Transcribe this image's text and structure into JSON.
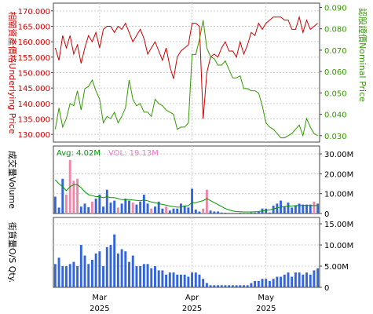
{
  "colors": {
    "underlying": "#cc0000",
    "warrant": "#339900",
    "vol_up": "#3366dd",
    "vol_down": "#ee88aa",
    "avg_line": "#009900",
    "grid": "#cccccc",
    "frame": "#444444",
    "avg_text": "#009900",
    "vol_text": "#ee77cc",
    "axis_text": "#000000"
  },
  "chart_data": [
    {
      "type": "line",
      "panel": "price",
      "left_axis_label": "相關資產價格Underlying Price",
      "right_axis_label": "認股證價Nominal Price",
      "left_ticks": [
        "130.000",
        "135.000",
        "140.000",
        "145.000",
        "150.000",
        "155.000",
        "160.000",
        "165.000",
        "170.000"
      ],
      "left_tick_values": [
        130,
        135,
        140,
        145,
        150,
        155,
        160,
        165,
        170
      ],
      "right_ticks": [
        "0.030",
        "0.040",
        "0.050",
        "0.060",
        "0.070",
        "0.080",
        "0.090"
      ],
      "right_tick_values": [
        0.03,
        0.04,
        0.05,
        0.06,
        0.07,
        0.08,
        0.09
      ],
      "ylim_left": [
        127.5,
        172.5
      ],
      "ylim_right": [
        0.027,
        0.092
      ],
      "x_count": 72,
      "series": [
        {
          "name": "Underlying",
          "axis": "left",
          "values": [
            158,
            154,
            162,
            158,
            162,
            156,
            159,
            153,
            158,
            162,
            160,
            163,
            158,
            164,
            165,
            165,
            163,
            165,
            164,
            166,
            163,
            160,
            162,
            164,
            161,
            156,
            158,
            160,
            157,
            154,
            158,
            152,
            148,
            155,
            157,
            158,
            159,
            166,
            166,
            165,
            135,
            150,
            155,
            156,
            155,
            158,
            160,
            157,
            157,
            155,
            160,
            156,
            159,
            163,
            162,
            166,
            164,
            166,
            167,
            168,
            168,
            168,
            167,
            167,
            164,
            164,
            168,
            163,
            167,
            164,
            165,
            166
          ]
        },
        {
          "name": "Warrant",
          "axis": "right",
          "values": [
            0.033,
            0.043,
            0.034,
            0.038,
            0.045,
            0.044,
            0.051,
            0.042,
            0.052,
            0.053,
            0.056,
            0.051,
            0.047,
            0.036,
            0.039,
            0.038,
            0.041,
            0.036,
            0.039,
            0.043,
            0.056,
            0.047,
            0.044,
            0.045,
            0.041,
            0.041,
            0.039,
            0.047,
            0.045,
            0.044,
            0.042,
            0.041,
            0.04,
            0.033,
            0.034,
            0.034,
            0.036,
            0.068,
            0.068,
            0.075,
            0.084,
            0.071,
            0.067,
            0.066,
            0.063,
            0.063,
            0.065,
            0.061,
            0.057,
            0.057,
            0.058,
            0.052,
            0.052,
            0.051,
            0.051,
            0.05,
            0.044,
            0.036,
            0.034,
            0.033,
            0.031,
            0.029,
            0.029,
            0.03,
            0.031,
            0.033,
            0.035,
            0.03,
            0.038,
            0.034,
            0.031,
            0.03
          ]
        }
      ]
    },
    {
      "type": "bar",
      "panel": "volume",
      "axis_label": "成交量Volume",
      "avg_label": "Avg: 4.02M",
      "vol_label": "VOL: 19.13M",
      "right_ticks": [
        "0",
        "10.00M",
        "20.00M",
        "30.00M"
      ],
      "right_tick_values": [
        0,
        10,
        20,
        30
      ],
      "ylim": [
        0,
        34
      ],
      "unit": "M",
      "x_count": 72,
      "values": [
        8.5,
        3.0,
        17.5,
        9.5,
        27.0,
        16.5,
        17.5,
        3.5,
        5.0,
        3.2,
        6.0,
        7.5,
        9.5,
        3.5,
        12.0,
        5.5,
        6.5,
        3.0,
        5.0,
        7.5,
        6.5,
        5.5,
        4.5,
        6.0,
        9.5,
        5.0,
        2.5,
        3.5,
        6.0,
        2.5,
        3.5,
        1.5,
        2.5,
        2.5,
        5.0,
        4.0,
        3.0,
        12.5,
        2.0,
        1.0,
        2.5,
        12.0,
        1.5,
        1.0,
        1.0,
        0.5,
        0.4,
        0.3,
        0.3,
        0.3,
        0.4,
        0.3,
        0.3,
        0.5,
        0.5,
        0.8,
        2.5,
        2.5,
        0.5,
        4.0,
        5.0,
        6.5,
        3.5,
        5.5,
        3.0,
        4.0,
        5.0,
        4.5,
        4.5,
        4.5,
        6.0,
        5.0
      ],
      "down": [
        false,
        false,
        false,
        true,
        true,
        true,
        true,
        false,
        false,
        false,
        true,
        false,
        false,
        false,
        false,
        false,
        false,
        true,
        false,
        false,
        false,
        true,
        false,
        false,
        false,
        false,
        true,
        false,
        false,
        false,
        true,
        false,
        false,
        false,
        false,
        false,
        false,
        false,
        false,
        false,
        true,
        true,
        false,
        false,
        false,
        false,
        false,
        false,
        false,
        false,
        false,
        false,
        false,
        false,
        false,
        false,
        false,
        false,
        false,
        false,
        false,
        false,
        false,
        false,
        false,
        false,
        false,
        false,
        false,
        false,
        true,
        false
      ],
      "avg_values": [
        17.0,
        15.0,
        13.5,
        11.5,
        13.5,
        14.5,
        14.5,
        13.0,
        11.0,
        9.5,
        9.0,
        8.5,
        8.5,
        8.0,
        8.5,
        8.0,
        8.0,
        7.5,
        7.0,
        7.0,
        7.0,
        6.8,
        6.6,
        6.4,
        6.8,
        6.4,
        5.8,
        5.4,
        5.0,
        4.6,
        4.2,
        3.8,
        3.5,
        3.2,
        3.3,
        3.8,
        4.0,
        5.5,
        5.5,
        6.0,
        6.5,
        7.5,
        6.5,
        5.5,
        4.5,
        3.5,
        2.5,
        1.8,
        1.3,
        1.0,
        0.9,
        0.8,
        0.8,
        0.8,
        0.9,
        1.0,
        1.3,
        1.6,
        1.8,
        2.3,
        2.8,
        3.3,
        3.5,
        3.8,
        3.8,
        4.0,
        4.0,
        4.1,
        4.1,
        4.0,
        4.0,
        4.0
      ]
    },
    {
      "type": "bar",
      "panel": "outstanding",
      "axis_label": "街貨量O/S Qty.",
      "right_ticks": [
        "0",
        "5.00M",
        "10.00M",
        "15.00M"
      ],
      "right_tick_values": [
        0,
        5,
        10,
        15
      ],
      "ylim": [
        0,
        16.5
      ],
      "unit": "M",
      "x_count": 72,
      "values": [
        5.5,
        7.0,
        5.0,
        5.0,
        5.5,
        6.0,
        5.0,
        10.0,
        7.5,
        5.5,
        6.5,
        8.0,
        8.5,
        5.0,
        9.5,
        10.0,
        12.5,
        8.0,
        9.0,
        8.5,
        6.0,
        7.5,
        5.0,
        5.0,
        5.5,
        5.5,
        4.5,
        5.0,
        4.0,
        4.0,
        3.0,
        3.5,
        3.5,
        3.0,
        3.0,
        3.0,
        2.5,
        3.5,
        3.5,
        3.0,
        2.0,
        1.0,
        0.5,
        0.5,
        0.5,
        0.5,
        0.5,
        0.5,
        0.5,
        0.5,
        0.5,
        0.5,
        0.5,
        1.0,
        1.5,
        1.5,
        2.0,
        2.0,
        1.5,
        2.0,
        2.5,
        2.5,
        3.0,
        3.5,
        2.5,
        3.5,
        3.5,
        3.0,
        3.5,
        3.0,
        4.0,
        4.5
      ]
    }
  ],
  "x_axis": {
    "labels": [
      {
        "month": "Mar",
        "year": "2025",
        "index": 12
      },
      {
        "month": "Apr",
        "year": "2025",
        "index": 37
      },
      {
        "month": "May",
        "year": "2025",
        "index": 57
      }
    ]
  }
}
